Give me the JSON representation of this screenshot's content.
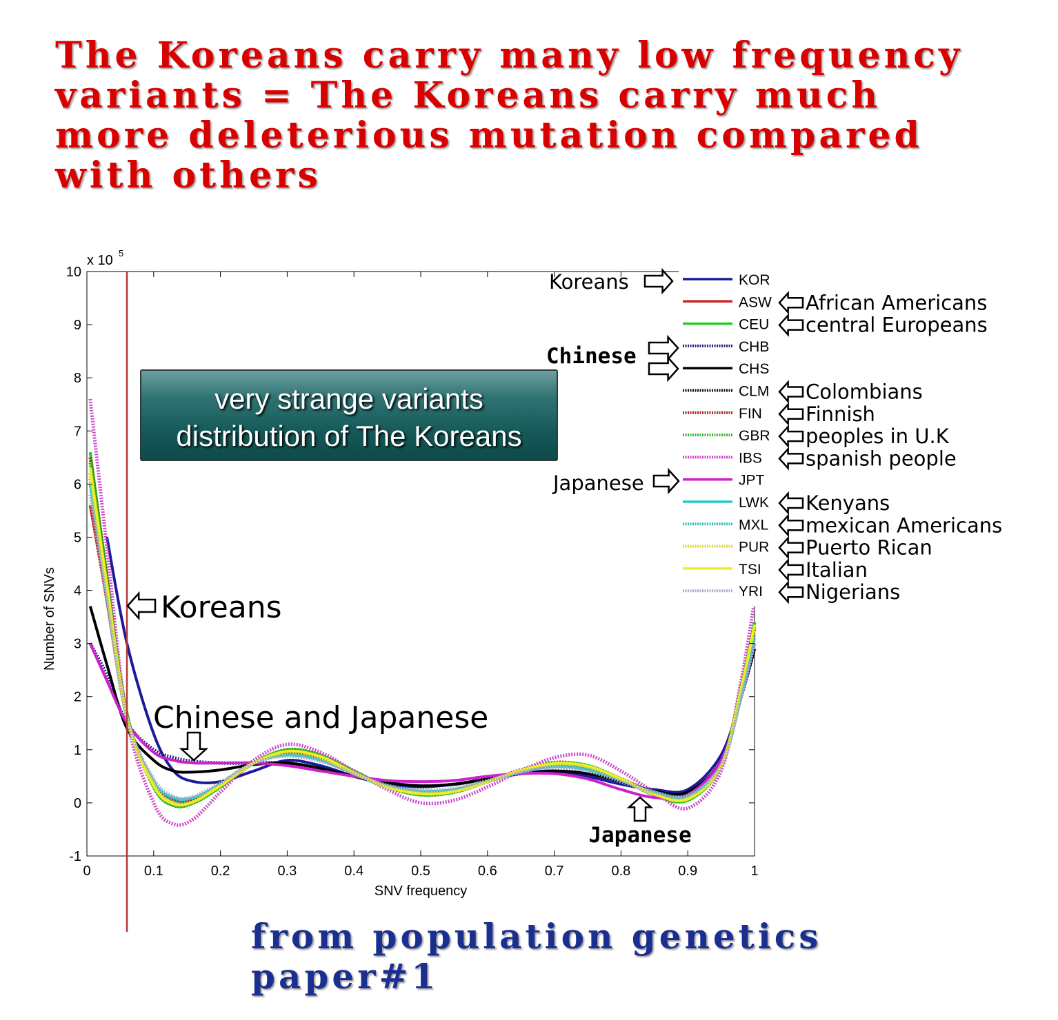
{
  "headline": [
    "The Koreans carry many low frequency",
    "variants = The Koreans carry much",
    "more deleterious mutation compared",
    "with others"
  ],
  "footer": [
    "from population genetics",
    "paper#1"
  ],
  "callout": [
    "very strange variants",
    "distribution of The Koreans"
  ],
  "chart_data": {
    "type": "line",
    "xlabel": "SNV frequency",
    "ylabel": "Number of SNVs",
    "y_multiplier_label": "x 10",
    "y_multiplier_exponent": "5",
    "xlim": [
      0,
      1
    ],
    "ylim": [
      -1,
      10
    ],
    "xticks": [
      "0",
      "0.1",
      "0.2",
      "0.3",
      "0.4",
      "0.5",
      "0.6",
      "0.7",
      "0.8",
      "0.9",
      "1"
    ],
    "yticks": [
      "-1",
      "0",
      "1",
      "2",
      "3",
      "4",
      "5",
      "6",
      "7",
      "8",
      "9",
      "10"
    ],
    "x": [
      0.005,
      0.03,
      0.06,
      0.1,
      0.13,
      0.16,
      0.2,
      0.25,
      0.3,
      0.35,
      0.4,
      0.45,
      0.5,
      0.55,
      0.6,
      0.65,
      0.7,
      0.75,
      0.8,
      0.85,
      0.9,
      0.95,
      0.98,
      1.0
    ],
    "reference_line_x": 0.06,
    "series": [
      {
        "name": "KOR",
        "label": "Koreans",
        "color": "#1a1a9a",
        "style": "solid",
        "values": [
          null,
          5.0,
          3.0,
          1.3,
          0.6,
          0.4,
          0.4,
          0.6,
          0.8,
          0.7,
          0.5,
          0.35,
          0.3,
          0.35,
          0.45,
          0.55,
          0.6,
          0.5,
          0.35,
          0.25,
          0.25,
          0.9,
          2.0,
          2.9
        ]
      },
      {
        "name": "ASW",
        "label": "African Americans",
        "color": "#cc2222",
        "style": "solid",
        "values": [
          5.6,
          3.8,
          1.6,
          0.4,
          0.05,
          0.05,
          0.3,
          0.75,
          0.95,
          0.85,
          0.55,
          0.3,
          0.2,
          0.25,
          0.4,
          0.6,
          0.7,
          0.65,
          0.45,
          0.2,
          0.1,
          0.7,
          2.1,
          3.3
        ]
      },
      {
        "name": "CEU",
        "label": "central Europeans",
        "color": "#22cc22",
        "style": "solid",
        "values": [
          6.6,
          4.3,
          1.7,
          0.3,
          -0.05,
          0.0,
          0.3,
          0.75,
          1.0,
          0.9,
          0.6,
          0.3,
          0.15,
          0.2,
          0.4,
          0.6,
          0.75,
          0.7,
          0.45,
          0.15,
          0.05,
          0.7,
          2.2,
          3.4
        ]
      },
      {
        "name": "CHB",
        "label": "",
        "color": "#22227a",
        "style": "dotted",
        "values": [
          3.0,
          2.4,
          1.5,
          1.0,
          0.85,
          0.78,
          0.75,
          0.75,
          0.75,
          0.65,
          0.5,
          0.38,
          0.32,
          0.35,
          0.45,
          0.55,
          0.6,
          0.55,
          0.4,
          0.22,
          0.2,
          0.8,
          2.0,
          2.9
        ]
      },
      {
        "name": "CHS",
        "label": "",
        "color": "#000000",
        "style": "solid",
        "values": [
          3.7,
          2.6,
          1.4,
          0.8,
          0.6,
          0.58,
          0.62,
          0.72,
          0.75,
          0.65,
          0.5,
          0.38,
          0.32,
          0.35,
          0.45,
          0.55,
          0.6,
          0.55,
          0.4,
          0.22,
          0.2,
          0.8,
          2.0,
          2.9
        ]
      },
      {
        "name": "CLM",
        "label": "Colombians",
        "color": "#111111",
        "style": "dotted",
        "values": [
          6.2,
          4.0,
          1.6,
          0.35,
          0.0,
          0.05,
          0.35,
          0.75,
          0.95,
          0.85,
          0.55,
          0.3,
          0.18,
          0.22,
          0.4,
          0.6,
          0.72,
          0.68,
          0.45,
          0.18,
          0.1,
          0.7,
          2.1,
          3.3
        ]
      },
      {
        "name": "FIN",
        "label": "Finnish",
        "color": "#aa2222",
        "style": "dotted",
        "values": [
          6.5,
          4.2,
          1.65,
          0.3,
          -0.05,
          0.0,
          0.3,
          0.75,
          1.0,
          0.9,
          0.6,
          0.3,
          0.15,
          0.2,
          0.4,
          0.62,
          0.76,
          0.7,
          0.45,
          0.15,
          0.05,
          0.7,
          2.2,
          3.4
        ]
      },
      {
        "name": "GBR",
        "label": "peoples in U.K",
        "color": "#33bb33",
        "style": "dotted",
        "values": [
          6.4,
          4.1,
          1.65,
          0.3,
          -0.05,
          0.0,
          0.3,
          0.75,
          1.0,
          0.9,
          0.6,
          0.3,
          0.15,
          0.2,
          0.4,
          0.6,
          0.75,
          0.7,
          0.45,
          0.15,
          0.05,
          0.7,
          2.2,
          3.4
        ]
      },
      {
        "name": "IBS",
        "label": "spanish people",
        "color": "#cc44cc",
        "style": "dotted",
        "values": [
          7.6,
          4.8,
          1.6,
          0.0,
          -0.4,
          -0.3,
          0.2,
          0.8,
          1.1,
          0.95,
          0.6,
          0.25,
          0.0,
          0.05,
          0.3,
          0.6,
          0.85,
          0.9,
          0.6,
          0.2,
          -0.1,
          0.6,
          2.3,
          3.8
        ]
      },
      {
        "name": "JPT",
        "label": "Japanese",
        "color": "#cc22cc",
        "style": "solid",
        "values": [
          3.0,
          2.3,
          1.5,
          0.95,
          0.8,
          0.75,
          0.75,
          0.75,
          0.7,
          0.6,
          0.5,
          0.42,
          0.4,
          0.42,
          0.5,
          0.55,
          0.55,
          0.45,
          0.25,
          0.1,
          0.15,
          0.8,
          2.0,
          3.0
        ]
      },
      {
        "name": "LWK",
        "label": "Kenyans",
        "color": "#22cccc",
        "style": "solid",
        "values": [
          6.0,
          3.9,
          1.6,
          0.4,
          0.1,
          0.1,
          0.35,
          0.75,
          0.9,
          0.8,
          0.55,
          0.32,
          0.22,
          0.25,
          0.4,
          0.58,
          0.68,
          0.62,
          0.42,
          0.2,
          0.12,
          0.7,
          2.0,
          3.1
        ]
      },
      {
        "name": "MXL",
        "label": "mexican Americans",
        "color": "#33bbbb",
        "style": "dotted",
        "values": [
          6.1,
          4.0,
          1.6,
          0.38,
          0.05,
          0.05,
          0.35,
          0.75,
          0.93,
          0.83,
          0.55,
          0.3,
          0.2,
          0.23,
          0.4,
          0.6,
          0.72,
          0.66,
          0.44,
          0.18,
          0.1,
          0.7,
          2.1,
          3.2
        ]
      },
      {
        "name": "PUR",
        "label": "Puerto Rican",
        "color": "#dddd33",
        "style": "dotted",
        "values": [
          6.2,
          4.0,
          1.6,
          0.35,
          0.0,
          0.03,
          0.33,
          0.75,
          0.95,
          0.85,
          0.56,
          0.3,
          0.18,
          0.22,
          0.4,
          0.6,
          0.73,
          0.68,
          0.45,
          0.17,
          0.08,
          0.7,
          2.1,
          3.3
        ]
      },
      {
        "name": "TSI",
        "label": "Italian",
        "color": "#eeee22",
        "style": "solid",
        "values": [
          6.3,
          4.1,
          1.62,
          0.32,
          -0.02,
          0.02,
          0.32,
          0.75,
          0.97,
          0.87,
          0.57,
          0.3,
          0.17,
          0.21,
          0.4,
          0.61,
          0.74,
          0.69,
          0.45,
          0.16,
          0.07,
          0.7,
          2.15,
          3.35
        ]
      },
      {
        "name": "YRI",
        "label": "Nigerians",
        "color": "#aaaacc",
        "style": "dotted",
        "values": [
          5.8,
          3.8,
          1.6,
          0.45,
          0.12,
          0.12,
          0.38,
          0.75,
          0.88,
          0.78,
          0.55,
          0.33,
          0.24,
          0.27,
          0.42,
          0.58,
          0.67,
          0.6,
          0.4,
          0.2,
          0.14,
          0.7,
          2.0,
          3.0
        ]
      }
    ],
    "legend_placement": "top-right",
    "legend_group_labels": {
      "koreans": "Koreans",
      "chinese": "Chinese",
      "japanese": "Japanese"
    },
    "annotations": {
      "koreans": "Koreans",
      "chinese_japanese": "Chinese and Japanese",
      "japanese": "Japanese"
    }
  }
}
